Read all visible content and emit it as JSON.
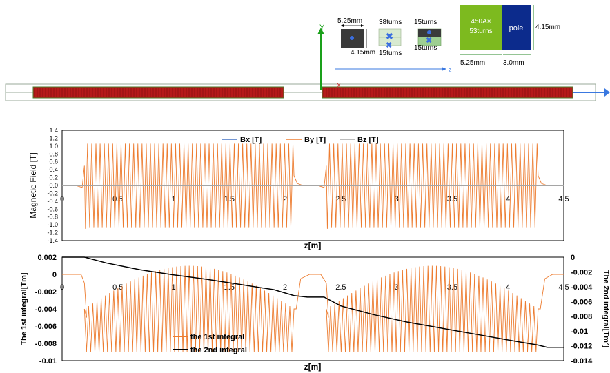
{
  "diagram": {
    "axis_y": "Y",
    "axis_x": "X",
    "axis_z": "Z",
    "dim_width": "5.25mm",
    "dim_height": "4.15mm",
    "turns_38": "38turns",
    "turns_15_a": "15turns",
    "turns_15_b": "15turns",
    "turns_15_c": "15turns",
    "coil_label_line1": "450A×",
    "coil_label_line2": "53turns",
    "pole_label": "pole",
    "coil_dim_height": "4.15mm",
    "coil_dim_width": "5.25mm",
    "pole_dim_width": "3.0mm",
    "colors": {
      "coil": "#7dba1f",
      "pole": "#0c2b8c",
      "magnet": "#b51a1a",
      "axis_y": "#1aa01a",
      "axis_z": "#3a78e0"
    }
  },
  "chart_data": [
    {
      "type": "line",
      "ylabel": "Magnetic Field [T]",
      "xlabel": "z[m]",
      "xlim": [
        0,
        4.5
      ],
      "ylim": [
        -1.4,
        1.4
      ],
      "yticks": [
        -1.4,
        -1.2,
        -1.0,
        -0.8,
        -0.6,
        -0.4,
        -0.2,
        0.0,
        0.2,
        0.4,
        0.6,
        0.8,
        1.0,
        1.2,
        1.4
      ],
      "ytick_labels": [
        "-1.4",
        "-1.2",
        "-1.0",
        "-0.8",
        "-0.6",
        "-0.4",
        "-0.2",
        "0.0",
        "0.2",
        "0.4",
        "0.6",
        "0.8",
        "1.0",
        "1.2",
        "1.4"
      ],
      "xticks": [
        0,
        0.5,
        1,
        1.5,
        2,
        2.5,
        3,
        3.5,
        4,
        4.5
      ],
      "xtick_labels": [
        "0",
        "0.5",
        "1",
        "1.5",
        "2",
        "2.5",
        "3",
        "3.5",
        "4",
        "4.5"
      ],
      "legend_position": "top",
      "series": [
        {
          "name": "Bx [T]",
          "color": "#4472c4",
          "description_values": "0 everywhere"
        },
        {
          "name": "By [T]",
          "color": "#ed7d31",
          "envelope_segments": [
            {
              "z_start": 0.2,
              "z_end": 2.08,
              "amplitude": 1.06,
              "cycles": 50
            },
            {
              "z_start": 2.37,
              "z_end": 4.27,
              "amplitude": 1.06,
              "cycles": 50
            }
          ]
        },
        {
          "name": "Bz [T]",
          "color": "#a5a5a5",
          "description_values": "0 everywhere"
        }
      ]
    },
    {
      "type": "line",
      "ylabel": "The 1st integral[Tm]",
      "y2label": "The 2nd integral[Tm²]",
      "xlabel": "z[m]",
      "xlim": [
        0,
        4.5
      ],
      "ylim": [
        -0.01,
        0.002
      ],
      "y2lim": [
        -0.014,
        0
      ],
      "yticks": [
        -0.01,
        -0.008,
        -0.006,
        -0.004,
        -0.002,
        0,
        0.002
      ],
      "ytick_labels": [
        "-0.01",
        "-0.008",
        "-0.006",
        "-0.004",
        "-0.002",
        "0",
        "0.002"
      ],
      "y2ticks": [
        -0.014,
        -0.012,
        -0.01,
        -0.008,
        -0.006,
        -0.004,
        -0.002,
        0
      ],
      "y2tick_labels": [
        "-0.014",
        "-0.012",
        "-0.01",
        "-0.008",
        "-0.006",
        "-0.004",
        "-0.002",
        "0"
      ],
      "xticks": [
        0,
        0.5,
        1,
        1.5,
        2,
        2.5,
        3,
        3.5,
        4,
        4.5
      ],
      "xtick_labels": [
        "0",
        "0.5",
        "1",
        "1.5",
        "2",
        "2.5",
        "3",
        "3.5",
        "4",
        "4.5"
      ],
      "legend_position": "bottom-left",
      "series": [
        {
          "name": "the 1st integral",
          "color": "#ed7d31",
          "axis": "left",
          "segments": [
            {
              "z_start": 0.2,
              "z_end": 2.08,
              "band_top_edge": [
                -0.0015,
                -0.0005,
                0.0008,
                0.0008,
                -0.0005,
                -0.0015
              ],
              "band_bottom": -0.009,
              "cycles": 50
            },
            {
              "z_start": 2.37,
              "z_end": 4.27,
              "band_top_edge": [
                -0.0015,
                -0.0005,
                0.0008,
                0.0008,
                -0.0005,
                -0.0015
              ],
              "band_bottom": -0.009,
              "cycles": 50
            }
          ]
        },
        {
          "name": "the 2nd integral",
          "color": "#000000",
          "axis": "right",
          "x": [
            0,
            0.2,
            0.4,
            0.7,
            1.0,
            1.3,
            1.6,
            1.9,
            2.08,
            2.2,
            2.35,
            2.5,
            2.8,
            3.1,
            3.4,
            3.7,
            4.0,
            4.27,
            4.35,
            4.5
          ],
          "y": [
            0,
            0,
            -0.0008,
            -0.0017,
            -0.0024,
            -0.003,
            -0.0037,
            -0.0044,
            -0.0052,
            -0.0054,
            -0.0054,
            -0.0066,
            -0.0078,
            -0.0088,
            -0.0096,
            -0.0104,
            -0.0112,
            -0.0119,
            -0.0122,
            -0.0122
          ]
        }
      ]
    }
  ]
}
